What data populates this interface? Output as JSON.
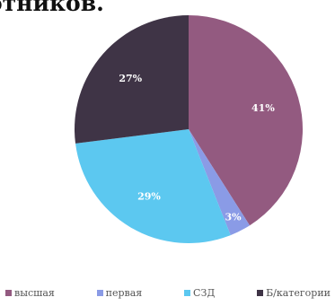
{
  "chart_data": {
    "type": "pie",
    "title": "отников.",
    "slices": [
      {
        "name": "высшая",
        "value": 41,
        "label": "41%",
        "color": "#935a80"
      },
      {
        "name": "первая",
        "value": 3,
        "label": "3%",
        "color": "#8a9be6"
      },
      {
        "name": "СЗД",
        "value": 29,
        "label": "29%",
        "color": "#5cc8f0"
      },
      {
        "name": "Б/категории",
        "value": 27,
        "label": "27%",
        "color": "#3f3446"
      }
    ],
    "legend_position": "bottom",
    "start_angle_deg": 0,
    "direction": "clockwise"
  }
}
